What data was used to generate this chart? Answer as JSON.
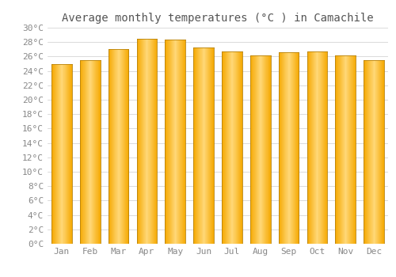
{
  "title": "Average monthly temperatures (°C ) in Camachile",
  "months": [
    "Jan",
    "Feb",
    "Mar",
    "Apr",
    "May",
    "Jun",
    "Jul",
    "Aug",
    "Sep",
    "Oct",
    "Nov",
    "Dec"
  ],
  "values": [
    25.0,
    25.5,
    27.0,
    28.5,
    28.4,
    27.3,
    26.7,
    26.1,
    26.6,
    26.7,
    26.1,
    25.5
  ],
  "ylim": [
    0,
    30
  ],
  "ytick_step": 2,
  "bar_color_edge": "#E8940A",
  "bar_color_mid": "#FFD878",
  "bar_color_side": "#F5A800",
  "bar_edge_stroke": "#B8820A",
  "background_color": "#ffffff",
  "grid_color": "#cccccc",
  "title_fontsize": 10,
  "tick_fontsize": 8,
  "tick_color": "#888888",
  "font_family": "monospace"
}
